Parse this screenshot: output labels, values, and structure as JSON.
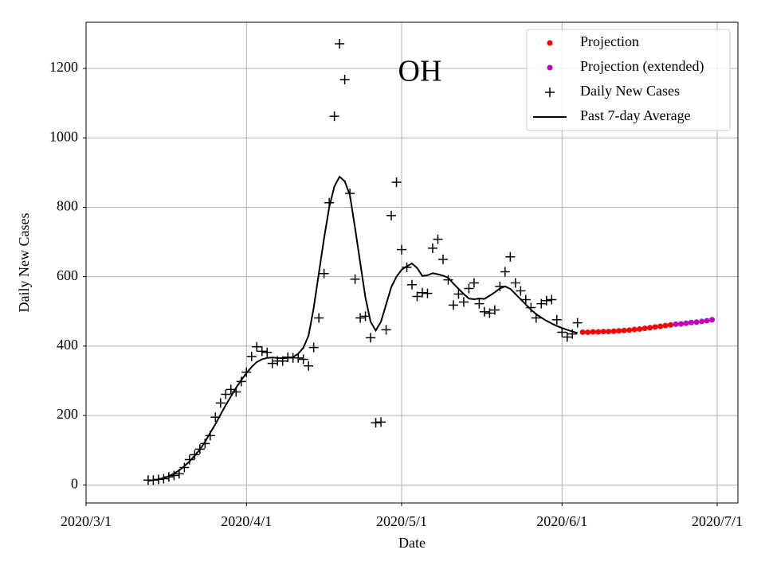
{
  "chart_data": {
    "type": "line",
    "xlabel": "Date",
    "ylabel": "Daily New Cases",
    "annotation": "OH",
    "xlim": [
      "2020-03-01",
      "2020-07-05"
    ],
    "ylim": [
      -52,
      1333
    ],
    "xticks": [
      {
        "value": "2020-03-01",
        "label": "2020/3/1"
      },
      {
        "value": "2020-04-01",
        "label": "2020/4/1"
      },
      {
        "value": "2020-05-01",
        "label": "2020/5/1"
      },
      {
        "value": "2020-06-01",
        "label": "2020/6/1"
      },
      {
        "value": "2020-07-01",
        "label": "2020/7/1"
      }
    ],
    "yticks": [
      0,
      200,
      400,
      600,
      800,
      1000,
      1200
    ],
    "grid": true,
    "legend": "upper right",
    "series": [
      {
        "name": "Projection",
        "color": "#ff0000",
        "style": "dot",
        "x": [
          "2020-06-05",
          "2020-06-06",
          "2020-06-07",
          "2020-06-08",
          "2020-06-09",
          "2020-06-10",
          "2020-06-11",
          "2020-06-12",
          "2020-06-13",
          "2020-06-14",
          "2020-06-15",
          "2020-06-16",
          "2020-06-17",
          "2020-06-18",
          "2020-06-19",
          "2020-06-20",
          "2020-06-21",
          "2020-06-22"
        ],
        "values": [
          440,
          440,
          441,
          441,
          442,
          442,
          443,
          444,
          445,
          446,
          448,
          449,
          451,
          453,
          455,
          457,
          459,
          461
        ]
      },
      {
        "name": "Projection (extended)",
        "color": "#bf00bf",
        "style": "dot",
        "x": [
          "2020-06-23",
          "2020-06-24",
          "2020-06-25",
          "2020-06-26",
          "2020-06-27",
          "2020-06-28",
          "2020-06-29",
          "2020-06-30"
        ],
        "values": [
          463,
          464,
          466,
          468,
          469,
          471,
          473,
          476
        ]
      },
      {
        "name": "Daily New Cases",
        "color": "#000000",
        "style": "plus",
        "x": [
          "2020-03-13",
          "2020-03-14",
          "2020-03-15",
          "2020-03-16",
          "2020-03-17",
          "2020-03-18",
          "2020-03-19",
          "2020-03-20",
          "2020-03-21",
          "2020-03-22",
          "2020-03-23",
          "2020-03-24",
          "2020-03-25",
          "2020-03-26",
          "2020-03-27",
          "2020-03-28",
          "2020-03-29",
          "2020-03-30",
          "2020-03-31",
          "2020-04-01",
          "2020-04-02",
          "2020-04-03",
          "2020-04-04",
          "2020-04-05",
          "2020-04-06",
          "2020-04-07",
          "2020-04-08",
          "2020-04-09",
          "2020-04-10",
          "2020-04-11",
          "2020-04-12",
          "2020-04-13",
          "2020-04-14",
          "2020-04-15",
          "2020-04-16",
          "2020-04-17",
          "2020-04-18",
          "2020-04-19",
          "2020-04-20",
          "2020-04-21",
          "2020-04-22",
          "2020-04-23",
          "2020-04-24",
          "2020-04-25",
          "2020-04-26",
          "2020-04-27",
          "2020-04-28",
          "2020-04-29",
          "2020-04-30",
          "2020-05-01",
          "2020-05-02",
          "2020-05-03",
          "2020-05-04",
          "2020-05-05",
          "2020-05-06",
          "2020-05-07",
          "2020-05-08",
          "2020-05-09",
          "2020-05-10",
          "2020-05-11",
          "2020-05-12",
          "2020-05-13",
          "2020-05-14",
          "2020-05-15",
          "2020-05-16",
          "2020-05-17",
          "2020-05-18",
          "2020-05-19",
          "2020-05-20",
          "2020-05-21",
          "2020-05-22",
          "2020-05-23",
          "2020-05-24",
          "2020-05-25",
          "2020-05-26",
          "2020-05-27",
          "2020-05-28",
          "2020-05-29",
          "2020-05-30",
          "2020-05-31",
          "2020-06-01",
          "2020-06-02",
          "2020-06-03",
          "2020-06-04"
        ],
        "values": [
          14,
          14,
          16,
          18,
          23,
          27,
          32,
          50,
          73,
          87,
          103,
          119,
          142,
          195,
          236,
          261,
          275,
          268,
          298,
          325,
          370,
          398,
          385,
          382,
          350,
          357,
          357,
          368,
          366,
          366,
          362,
          343,
          396,
          481,
          609,
          813,
          1062,
          1271,
          1168,
          840,
          593,
          481,
          486,
          424,
          179,
          181,
          447,
          776,
          872,
          678,
          627,
          577,
          543,
          554,
          552,
          682,
          708,
          650,
          591,
          518,
          550,
          527,
          566,
          582,
          522,
          499,
          495,
          504,
          572,
          614,
          657,
          582,
          559,
          534,
          511,
          481,
          522,
          531,
          534,
          476,
          440,
          426,
          435,
          467
        ]
      },
      {
        "name": "Past 7-day Average",
        "color": "#000000",
        "style": "line",
        "x": [
          "2020-03-13",
          "2020-03-14",
          "2020-03-15",
          "2020-03-16",
          "2020-03-17",
          "2020-03-18",
          "2020-03-19",
          "2020-03-20",
          "2020-03-21",
          "2020-03-22",
          "2020-03-23",
          "2020-03-24",
          "2020-03-25",
          "2020-03-26",
          "2020-03-27",
          "2020-03-28",
          "2020-03-29",
          "2020-03-30",
          "2020-03-31",
          "2020-04-01",
          "2020-04-02",
          "2020-04-03",
          "2020-04-04",
          "2020-04-05",
          "2020-04-06",
          "2020-04-07",
          "2020-04-08",
          "2020-04-09",
          "2020-04-10",
          "2020-04-11",
          "2020-04-12",
          "2020-04-13",
          "2020-04-14",
          "2020-04-15",
          "2020-04-16",
          "2020-04-17",
          "2020-04-18",
          "2020-04-19",
          "2020-04-20",
          "2020-04-21",
          "2020-04-22",
          "2020-04-23",
          "2020-04-24",
          "2020-04-25",
          "2020-04-26",
          "2020-04-27",
          "2020-04-28",
          "2020-04-29",
          "2020-04-30",
          "2020-05-01",
          "2020-05-02",
          "2020-05-03",
          "2020-05-04",
          "2020-05-05",
          "2020-05-06",
          "2020-05-07",
          "2020-05-08",
          "2020-05-09",
          "2020-05-10",
          "2020-05-11",
          "2020-05-12",
          "2020-05-13",
          "2020-05-14",
          "2020-05-15",
          "2020-05-16",
          "2020-05-17",
          "2020-05-18",
          "2020-05-19",
          "2020-05-20",
          "2020-05-21",
          "2020-05-22",
          "2020-05-23",
          "2020-05-24",
          "2020-05-25",
          "2020-05-26",
          "2020-05-27",
          "2020-05-28",
          "2020-05-29",
          "2020-05-30",
          "2020-05-31",
          "2020-06-01",
          "2020-06-02",
          "2020-06-03",
          "2020-06-04"
        ],
        "values": [
          12,
          14,
          16,
          20,
          25,
          33,
          42,
          54,
          68,
          84,
          102,
          124,
          150,
          175,
          203,
          230,
          255,
          280,
          302,
          322,
          340,
          354,
          362,
          366,
          367,
          366,
          365,
          366,
          368,
          378,
          395,
          430,
          510,
          610,
          710,
          800,
          860,
          888,
          875,
          835,
          740,
          640,
          540,
          470,
          445,
          470,
          520,
          570,
          600,
          620,
          630,
          638,
          625,
          602,
          604,
          610,
          607,
          603,
          597,
          580,
          565,
          550,
          537,
          535,
          537,
          536,
          545,
          555,
          566,
          572,
          565,
          550,
          535,
          520,
          505,
          492,
          482,
          473,
          465,
          458,
          452,
          447,
          442,
          438
        ]
      }
    ]
  }
}
